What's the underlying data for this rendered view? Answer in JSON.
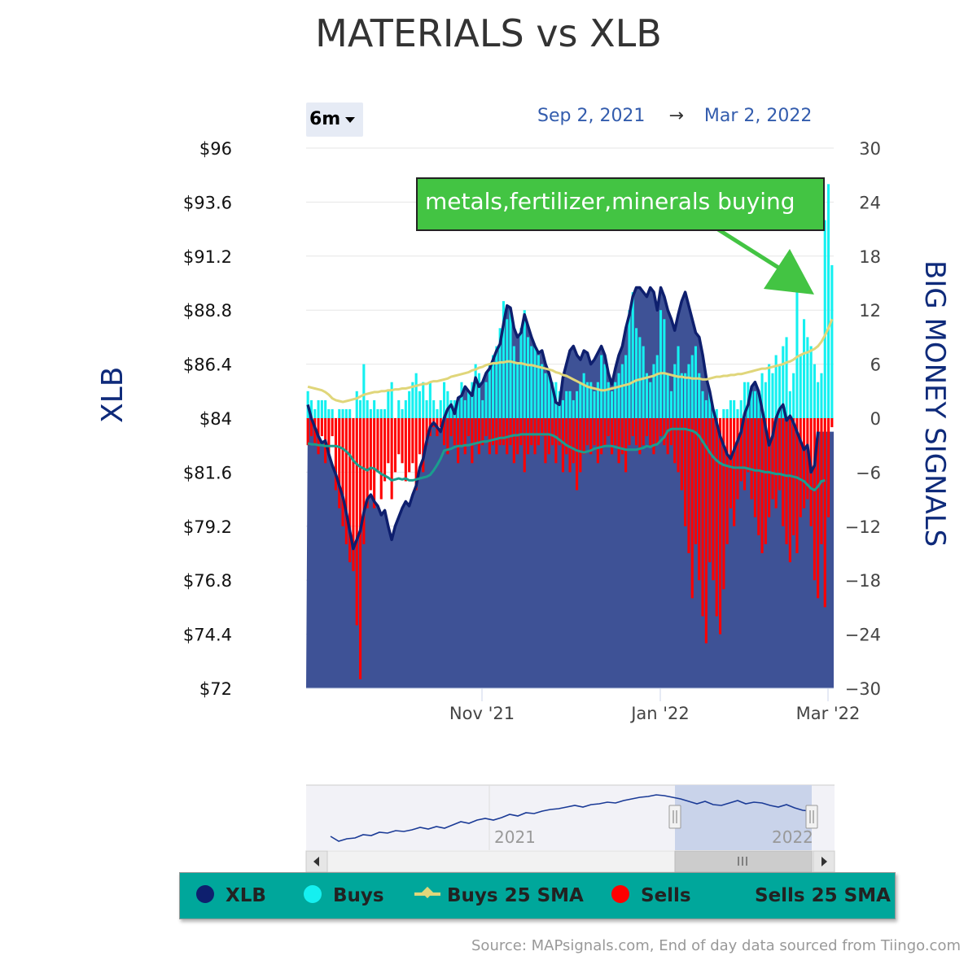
{
  "title": "MATERIALS vs XLB",
  "range_selector": "6m",
  "date_range": {
    "from": "Sep 2, 2021",
    "arrow": "→",
    "to": "Mar 2, 2022"
  },
  "annotation": "metals,fertilizer,minerals buying",
  "left_axis_title": "XLB",
  "right_axis_title": "BIG MONEY SIGNALS",
  "legend": [
    {
      "label": "XLB",
      "color": "#0e1f6e"
    },
    {
      "label": "Buys",
      "color": "#15f0f0"
    },
    {
      "label": "Buys 25 SMA",
      "color": "#e0d67a"
    },
    {
      "label": "Sells",
      "color": "#ff0000"
    },
    {
      "label": "Sells 25 SMA",
      "color": "#1a9e8e"
    }
  ],
  "navigator": {
    "labels": [
      "2021",
      "2022"
    ]
  },
  "source": "Source: MAPsignals.com, End of day data sourced from Tiingo.com",
  "colors": {
    "xlb_fill": "#3a4f94",
    "xlb_line": "#0e1f6e",
    "buys": "#15f0f0",
    "sells": "#ff0000",
    "buys_sma": "#e0d67a",
    "sells_sma": "#1a9e8e",
    "annotation_bg": "#43c443"
  },
  "chart_data": {
    "type": "bar",
    "x_range": [
      "2021-09-02",
      "2022-03-02"
    ],
    "x_ticks": [
      "Nov '21",
      "Jan '22",
      "Mar '22"
    ],
    "y_left": {
      "label": "XLB",
      "ticks": [
        "$96",
        "$93.6",
        "$91.2",
        "$88.8",
        "$86.4",
        "$84",
        "$81.6",
        "$79.2",
        "$76.8",
        "$74.4",
        "$72"
      ],
      "ylim": [
        72,
        96
      ]
    },
    "y_right": {
      "label": "BIG MONEY SIGNALS",
      "ticks": [
        "30",
        "24",
        "18",
        "12",
        "6",
        "0",
        "−6",
        "−12",
        "−18",
        "−24",
        "−30"
      ],
      "ylim": [
        -30,
        30
      ]
    },
    "series": [
      {
        "name": "XLB",
        "type": "area",
        "values": [
          84.6,
          84.0,
          83.6,
          83.2,
          82.9,
          83.0,
          82.4,
          81.9,
          81.5,
          81.0,
          80.5,
          79.8,
          79.0,
          78.2,
          78.6,
          79.0,
          79.8,
          80.4,
          80.6,
          80.3,
          80.1,
          79.7,
          79.9,
          79.2,
          78.6,
          79.2,
          79.6,
          80.0,
          80.3,
          80.1,
          80.6,
          81.0,
          81.8,
          82.2,
          83.0,
          83.6,
          83.8,
          83.6,
          83.4,
          84.0,
          84.4,
          84.6,
          84.2,
          84.9,
          85.0,
          85.4,
          85.2,
          85.0,
          85.8,
          85.4,
          85.6,
          86.0,
          86.2,
          86.6,
          87.0,
          87.3,
          88.2,
          89.0,
          88.9,
          88.0,
          87.6,
          87.8,
          88.6,
          88.1,
          87.6,
          87.2,
          86.9,
          87.0,
          86.4,
          86.0,
          85.4,
          84.7,
          84.6,
          85.8,
          86.4,
          87.0,
          87.2,
          86.8,
          86.6,
          87.0,
          86.9,
          86.4,
          86.6,
          86.9,
          87.2,
          86.8,
          86.0,
          85.5,
          86.2,
          86.8,
          87.2,
          88.0,
          88.6,
          89.4,
          89.8,
          89.8,
          89.6,
          89.4,
          89.8,
          89.6,
          88.8,
          89.8,
          89.4,
          88.8,
          88.4,
          87.9,
          88.6,
          89.2,
          89.6,
          89.0,
          88.4,
          87.8,
          87.6,
          86.8,
          85.8,
          85.2,
          84.4,
          83.8,
          83.2,
          82.8,
          82.4,
          82.2,
          82.6,
          83.0,
          83.4,
          84.2,
          84.6,
          85.4,
          85.6,
          85.2,
          84.4,
          83.6,
          82.8,
          83.2,
          84.0,
          84.4,
          84.6,
          83.9,
          84.1,
          83.8,
          83.4,
          83.0,
          82.6,
          82.8,
          81.6,
          81.9,
          83.4
        ]
      },
      {
        "name": "Buys",
        "type": "bar",
        "values": [
          3,
          2,
          1,
          2,
          2,
          2,
          1,
          1,
          0,
          1,
          1,
          1,
          1,
          0,
          3,
          2,
          6,
          2,
          1,
          2,
          1,
          1,
          1,
          3,
          4,
          0,
          2,
          1,
          2,
          3,
          4,
          5,
          3,
          4,
          2,
          4,
          2,
          1,
          2,
          4,
          3,
          2,
          2,
          2,
          4,
          2,
          3,
          4,
          6,
          5,
          2,
          4,
          6,
          7,
          8,
          10,
          13,
          11,
          12,
          8,
          6,
          10,
          12,
          9,
          8,
          8,
          7,
          6,
          5,
          5,
          4,
          4,
          3,
          2,
          3,
          3,
          2,
          3,
          4,
          5,
          4,
          4,
          3,
          4,
          7,
          6,
          4,
          3,
          4,
          5,
          6,
          7,
          12,
          14,
          10,
          9,
          8,
          5,
          4,
          6,
          7,
          12,
          11,
          5,
          3,
          6,
          8,
          5,
          5,
          6,
          7,
          8,
          5,
          3,
          2,
          3,
          1,
          1,
          0,
          1,
          1,
          2,
          2,
          1,
          2,
          4,
          4,
          3,
          3,
          3,
          5,
          4,
          6,
          5,
          7,
          6,
          8,
          9,
          3,
          5,
          14,
          7,
          11,
          9,
          8,
          6,
          4,
          5,
          22,
          26,
          17
        ]
      },
      {
        "name": "Buys 25 SMA",
        "type": "line",
        "values": [
          3.5,
          3.4,
          3.3,
          3.2,
          3.1,
          2.9,
          2.6,
          2.2,
          2.0,
          1.9,
          1.8,
          1.9,
          2.0,
          2.1,
          2.2,
          2.4,
          2.6,
          2.7,
          2.8,
          2.9,
          2.9,
          3.0,
          3.0,
          3.1,
          3.1,
          3.2,
          3.2,
          3.3,
          3.3,
          3.4,
          3.5,
          3.6,
          3.7,
          3.8,
          3.8,
          4.0,
          4.1,
          4.1,
          4.2,
          4.3,
          4.4,
          4.6,
          4.7,
          4.8,
          4.9,
          5.0,
          5.1,
          5.3,
          5.4,
          5.6,
          5.7,
          5.9,
          6.0,
          6.1,
          6.1,
          6.2,
          6.2,
          6.3,
          6.3,
          6.2,
          6.1,
          6.1,
          6.0,
          5.9,
          5.9,
          5.8,
          5.7,
          5.6,
          5.5,
          5.4,
          5.3,
          5.1,
          5.0,
          4.8,
          4.7,
          4.5,
          4.3,
          4.1,
          3.9,
          3.7,
          3.5,
          3.4,
          3.3,
          3.2,
          3.1,
          3.1,
          3.2,
          3.3,
          3.4,
          3.5,
          3.6,
          3.7,
          3.8,
          4.0,
          4.2,
          4.3,
          4.4,
          4.5,
          4.6,
          4.7,
          4.9,
          5.0,
          5.0,
          4.9,
          4.8,
          4.7,
          4.6,
          4.6,
          4.5,
          4.5,
          4.4,
          4.4,
          4.4,
          4.3,
          4.3,
          4.4,
          4.5,
          4.6,
          4.6,
          4.7,
          4.7,
          4.8,
          4.8,
          4.9,
          4.9,
          5.0,
          5.1,
          5.2,
          5.3,
          5.4,
          5.5,
          5.5,
          5.6,
          5.7,
          5.8,
          5.9,
          6.0,
          6.2,
          6.3,
          6.5,
          6.8,
          7.0,
          7.2,
          7.3,
          7.5,
          7.7,
          8.0,
          8.5,
          9.2,
          10.0,
          11.0
        ]
      },
      {
        "name": "Sells",
        "type": "bar",
        "values": [
          -3,
          -2,
          -3,
          -4,
          -2,
          -5,
          -4,
          -2,
          -8,
          -10,
          -12,
          -14,
          -16,
          -17,
          -23,
          -29,
          -14,
          -10,
          -8,
          -10,
          -6,
          -9,
          -7,
          -5,
          -9,
          -6,
          -4,
          -5,
          -7,
          -6,
          -5,
          -8,
          -4,
          -6,
          -3,
          -2,
          -1,
          -2,
          -1,
          -3,
          -4,
          -2,
          -3,
          -5,
          -3,
          -4,
          -2,
          -5,
          -3,
          -4,
          -3,
          -2,
          -4,
          -3,
          -4,
          -3,
          -3,
          -4,
          -3,
          -5,
          -4,
          -3,
          -6,
          -4,
          -3,
          -4,
          -3,
          -2,
          -5,
          -4,
          -3,
          -5,
          -3,
          -6,
          -4,
          -6,
          -5,
          -8,
          -6,
          -4,
          -3,
          -4,
          -3,
          -5,
          -4,
          -3,
          -2,
          -4,
          -3,
          -5,
          -4,
          -6,
          -3,
          -2,
          -3,
          -4,
          -3,
          -2,
          -3,
          -4,
          -3,
          -2,
          -3,
          -4,
          -3,
          -5,
          -6,
          -8,
          -12,
          -15,
          -20,
          -14,
          -18,
          -22,
          -25,
          -16,
          -18,
          -22,
          -24,
          -19,
          -14,
          -10,
          -12,
          -9,
          -7,
          -8,
          -6,
          -9,
          -11,
          -13,
          -15,
          -14,
          -11,
          -9,
          -10,
          -8,
          -12,
          -14,
          -16,
          -13,
          -15,
          -11,
          -10,
          -9,
          -12,
          -18,
          -20,
          -14,
          -21,
          -11,
          -1
        ]
      },
      {
        "name": "Sells 25 SMA",
        "type": "line",
        "values": [
          -2.8,
          -2.9,
          -2.9,
          -3.0,
          -3.0,
          -3.1,
          -3.1,
          -3.1,
          -3.1,
          -3.2,
          -3.4,
          -3.7,
          -4.1,
          -4.7,
          -5.1,
          -5.4,
          -5.6,
          -5.8,
          -5.5,
          -5.6,
          -5.9,
          -6.2,
          -6.4,
          -6.6,
          -6.9,
          -6.8,
          -6.7,
          -6.8,
          -6.7,
          -6.9,
          -6.9,
          -6.8,
          -6.7,
          -6.6,
          -6.5,
          -6.3,
          -5.8,
          -5.2,
          -4.5,
          -3.6,
          -3.5,
          -3.4,
          -3.2,
          -3.1,
          -3.1,
          -3.0,
          -3.0,
          -2.9,
          -2.8,
          -2.7,
          -2.6,
          -2.6,
          -2.5,
          -2.4,
          -2.3,
          -2.2,
          -2.2,
          -2.1,
          -2.0,
          -1.9,
          -1.9,
          -1.8,
          -1.8,
          -1.8,
          -1.8,
          -1.8,
          -1.8,
          -1.8,
          -1.8,
          -1.8,
          -1.9,
          -2.1,
          -2.4,
          -2.7,
          -3.0,
          -3.2,
          -3.4,
          -3.6,
          -3.7,
          -3.8,
          -3.7,
          -3.6,
          -3.4,
          -3.3,
          -3.2,
          -3.1,
          -3.1,
          -3.1,
          -3.2,
          -3.3,
          -3.4,
          -3.5,
          -3.5,
          -3.5,
          -3.5,
          -3.4,
          -3.3,
          -3.1,
          -3.2,
          -3.0,
          -2.9,
          -2.5,
          -2.1,
          -1.4,
          -1.2,
          -1.2,
          -1.2,
          -1.2,
          -1.2,
          -1.3,
          -1.4,
          -1.6,
          -2.0,
          -2.6,
          -3.2,
          -3.8,
          -4.3,
          -4.7,
          -5.0,
          -5.2,
          -5.3,
          -5.4,
          -5.5,
          -5.5,
          -5.5,
          -5.5,
          -5.6,
          -5.7,
          -5.8,
          -5.8,
          -5.9,
          -6.0,
          -6.0,
          -6.1,
          -6.2,
          -6.2,
          -6.3,
          -6.4,
          -6.4,
          -6.5,
          -6.6,
          -6.8,
          -7.0,
          -7.4,
          -7.8,
          -8.0,
          -7.6,
          -7.0,
          -6.9
        ]
      }
    ]
  }
}
